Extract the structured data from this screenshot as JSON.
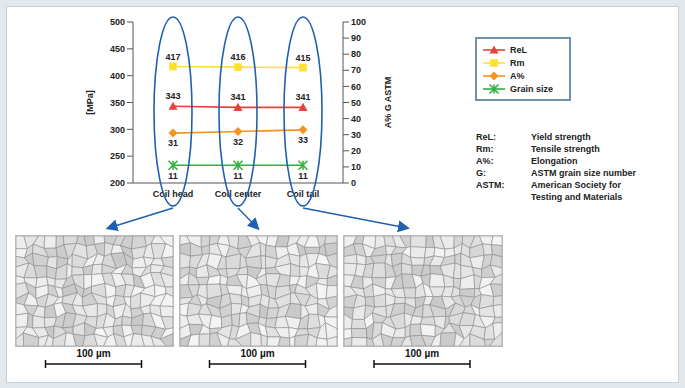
{
  "chart_data": {
    "type": "line",
    "categories": [
      "Coil head",
      "Coil center",
      "Coil tail"
    ],
    "y_label": "[MPa]",
    "y2_label": "A% G ASTM",
    "ylim": [
      200,
      500
    ],
    "yticks": [
      200,
      250,
      300,
      350,
      400,
      450,
      500
    ],
    "y2lim": [
      0,
      100
    ],
    "y2ticks": [
      0,
      10,
      20,
      30,
      40,
      50,
      60,
      70,
      80,
      90,
      100
    ],
    "grid": false,
    "data_labels": true,
    "legend": "right",
    "series": [
      {
        "name": "ReL",
        "color": "#e8403a",
        "marker": "triangle",
        "values": [
          343,
          341,
          341
        ]
      },
      {
        "name": "Rm",
        "color": "#ffe030",
        "marker": "square",
        "values": [
          417,
          416,
          415
        ]
      },
      {
        "name": "A%",
        "color": "#f5951f",
        "marker": "diamond",
        "axis": "y2",
        "values": [
          31,
          32,
          33
        ]
      },
      {
        "name": "Grain size",
        "color": "#30b040",
        "marker": "x",
        "axis": "y2",
        "values": [
          11,
          11,
          11
        ]
      }
    ]
  },
  "definitions": [
    {
      "term": "ReL:",
      "meaning": "Yield strength"
    },
    {
      "term": "Rm:",
      "meaning": "Tensile strength"
    },
    {
      "term": "A%:",
      "meaning": "Elongation"
    },
    {
      "term": "G:",
      "meaning": "ASTM grain size number"
    },
    {
      "term": "ASTM:",
      "meaning": "American Society for\nTesting and Materials"
    }
  ],
  "micrographs": {
    "scale_bar_labels": [
      "100 µm",
      "100 µm",
      "100 µm"
    ]
  }
}
